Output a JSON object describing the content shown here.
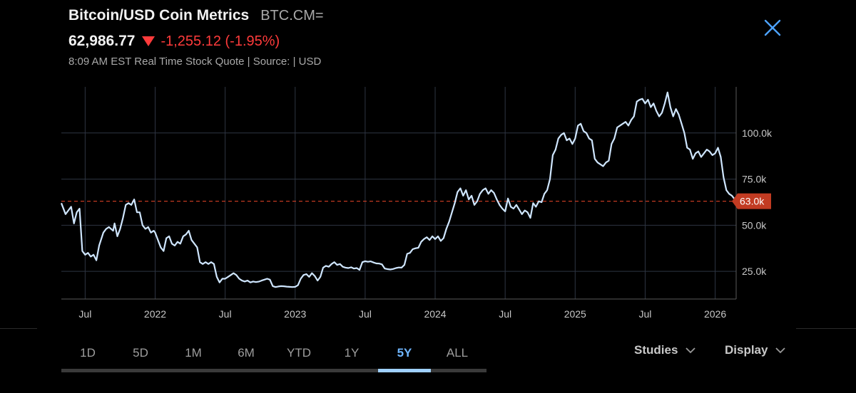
{
  "header": {
    "title": "Bitcoin/USD Coin Metrics",
    "ticker": "BTC.CM=",
    "price": "62,986.77",
    "change": "-1,255.12 (-1.95%)",
    "meta": "8:09 AM EST Real Time Stock Quote | Source:  | USD"
  },
  "colors": {
    "line": "#cfe6ff",
    "down": "#ff3b3b",
    "accent": "#6fb6ff",
    "badge": "#c23b22"
  },
  "ranges": {
    "items": [
      "1D",
      "5D",
      "1M",
      "6M",
      "YTD",
      "1Y",
      "5Y",
      "ALL"
    ],
    "active": "5Y"
  },
  "menus": {
    "studies": "Studies",
    "display": "Display"
  },
  "chart_data": {
    "type": "line",
    "title": "Bitcoin/USD Coin Metrics",
    "xlabel": "",
    "ylabel": "USD",
    "x_range": [
      2021.33,
      2026.15
    ],
    "ylim": [
      10000,
      125000
    ],
    "y_ticks": [
      25000,
      50000,
      75000,
      100000
    ],
    "y_tick_labels": [
      "25.0k",
      "50.0k",
      "75.0k",
      "100.0k"
    ],
    "x_ticks": [
      {
        "t": 2021.5,
        "label": "Jul"
      },
      {
        "t": 2022.0,
        "label": "2022"
      },
      {
        "t": 2022.5,
        "label": "Jul"
      },
      {
        "t": 2023.0,
        "label": "2023"
      },
      {
        "t": 2023.5,
        "label": "Jul"
      },
      {
        "t": 2024.0,
        "label": "2024"
      },
      {
        "t": 2024.5,
        "label": "Jul"
      },
      {
        "t": 2025.0,
        "label": "2025"
      },
      {
        "t": 2025.5,
        "label": "Jul"
      },
      {
        "t": 2026.0,
        "label": "2026"
      }
    ],
    "last_value": 63000,
    "last_label": "63.0k",
    "reference_line": 63000,
    "series": [
      {
        "name": "BTC.CM=",
        "points": [
          [
            2021.33,
            62000
          ],
          [
            2021.36,
            56000
          ],
          [
            2021.38,
            58000
          ],
          [
            2021.4,
            60000
          ],
          [
            2021.42,
            51000
          ],
          [
            2021.44,
            57000
          ],
          [
            2021.46,
            59000
          ],
          [
            2021.48,
            36000
          ],
          [
            2021.5,
            34000
          ],
          [
            2021.52,
            35000
          ],
          [
            2021.54,
            33000
          ],
          [
            2021.56,
            34000
          ],
          [
            2021.58,
            31000
          ],
          [
            2021.6,
            39000
          ],
          [
            2021.63,
            46000
          ],
          [
            2021.65,
            48000
          ],
          [
            2021.67,
            49000
          ],
          [
            2021.7,
            47000
          ],
          [
            2021.71,
            51000
          ],
          [
            2021.73,
            44000
          ],
          [
            2021.75,
            48000
          ],
          [
            2021.77,
            54000
          ],
          [
            2021.79,
            61000
          ],
          [
            2021.81,
            62000
          ],
          [
            2021.83,
            61000
          ],
          [
            2021.85,
            64000
          ],
          [
            2021.87,
            57000
          ],
          [
            2021.89,
            57000
          ],
          [
            2021.91,
            50000
          ],
          [
            2021.93,
            48000
          ],
          [
            2021.95,
            49000
          ],
          [
            2021.97,
            46000
          ],
          [
            2021.99,
            47000
          ],
          [
            2022.0,
            46000
          ],
          [
            2022.02,
            42000
          ],
          [
            2022.04,
            38000
          ],
          [
            2022.06,
            36000
          ],
          [
            2022.08,
            43000
          ],
          [
            2022.1,
            44000
          ],
          [
            2022.12,
            40000
          ],
          [
            2022.14,
            39000
          ],
          [
            2022.16,
            41000
          ],
          [
            2022.18,
            40000
          ],
          [
            2022.2,
            44000
          ],
          [
            2022.22,
            45000
          ],
          [
            2022.24,
            47000
          ],
          [
            2022.26,
            42000
          ],
          [
            2022.28,
            40000
          ],
          [
            2022.3,
            38000
          ],
          [
            2022.32,
            30000
          ],
          [
            2022.34,
            29000
          ],
          [
            2022.36,
            30000
          ],
          [
            2022.38,
            29000
          ],
          [
            2022.4,
            30000
          ],
          [
            2022.42,
            29000
          ],
          [
            2022.44,
            22000
          ],
          [
            2022.46,
            19000
          ],
          [
            2022.48,
            21000
          ],
          [
            2022.5,
            21000
          ],
          [
            2022.52,
            22000
          ],
          [
            2022.54,
            23000
          ],
          [
            2022.56,
            24000
          ],
          [
            2022.58,
            23000
          ],
          [
            2022.6,
            21000
          ],
          [
            2022.62,
            20000
          ],
          [
            2022.64,
            19500
          ],
          [
            2022.66,
            20000
          ],
          [
            2022.68,
            19000
          ],
          [
            2022.7,
            19500
          ],
          [
            2022.72,
            19200
          ],
          [
            2022.74,
            19400
          ],
          [
            2022.76,
            20000
          ],
          [
            2022.78,
            20500
          ],
          [
            2022.8,
            21000
          ],
          [
            2022.82,
            20500
          ],
          [
            2022.84,
            17000
          ],
          [
            2022.86,
            16500
          ],
          [
            2022.88,
            16800
          ],
          [
            2022.9,
            17000
          ],
          [
            2022.92,
            16900
          ],
          [
            2022.94,
            16700
          ],
          [
            2022.96,
            16600
          ],
          [
            2022.98,
            16500
          ],
          [
            2023.0,
            16600
          ],
          [
            2023.02,
            17500
          ],
          [
            2023.04,
            21000
          ],
          [
            2023.06,
            23000
          ],
          [
            2023.08,
            23500
          ],
          [
            2023.1,
            22000
          ],
          [
            2023.12,
            24000
          ],
          [
            2023.14,
            22500
          ],
          [
            2023.16,
            20000
          ],
          [
            2023.18,
            22000
          ],
          [
            2023.2,
            27000
          ],
          [
            2023.22,
            28000
          ],
          [
            2023.24,
            27500
          ],
          [
            2023.26,
            29000
          ],
          [
            2023.28,
            30000
          ],
          [
            2023.3,
            28500
          ],
          [
            2023.32,
            29000
          ],
          [
            2023.34,
            27500
          ],
          [
            2023.36,
            27000
          ],
          [
            2023.38,
            26800
          ],
          [
            2023.4,
            27200
          ],
          [
            2023.42,
            26500
          ],
          [
            2023.44,
            26800
          ],
          [
            2023.46,
            25800
          ],
          [
            2023.48,
            30000
          ],
          [
            2023.5,
            30500
          ],
          [
            2023.52,
            30200
          ],
          [
            2023.54,
            30400
          ],
          [
            2023.56,
            29800
          ],
          [
            2023.58,
            29300
          ],
          [
            2023.6,
            29200
          ],
          [
            2023.62,
            28800
          ],
          [
            2023.64,
            26500
          ],
          [
            2023.66,
            26200
          ],
          [
            2023.68,
            26000
          ],
          [
            2023.7,
            26300
          ],
          [
            2023.72,
            26800
          ],
          [
            2023.74,
            27100
          ],
          [
            2023.76,
            27000
          ],
          [
            2023.78,
            28500
          ],
          [
            2023.8,
            34500
          ],
          [
            2023.82,
            35000
          ],
          [
            2023.84,
            37000
          ],
          [
            2023.86,
            37500
          ],
          [
            2023.88,
            37800
          ],
          [
            2023.9,
            41000
          ],
          [
            2023.92,
            42500
          ],
          [
            2023.94,
            43500
          ],
          [
            2023.96,
            42000
          ],
          [
            2023.98,
            44000
          ],
          [
            2024.0,
            42500
          ],
          [
            2024.02,
            44000
          ],
          [
            2024.04,
            41500
          ],
          [
            2024.06,
            43000
          ],
          [
            2024.08,
            48000
          ],
          [
            2024.1,
            52000
          ],
          [
            2024.12,
            57000
          ],
          [
            2024.14,
            62000
          ],
          [
            2024.16,
            68000
          ],
          [
            2024.18,
            70000
          ],
          [
            2024.2,
            66000
          ],
          [
            2024.22,
            69000
          ],
          [
            2024.24,
            64000
          ],
          [
            2024.26,
            66000
          ],
          [
            2024.28,
            61000
          ],
          [
            2024.3,
            63000
          ],
          [
            2024.32,
            67000
          ],
          [
            2024.34,
            69000
          ],
          [
            2024.36,
            70000
          ],
          [
            2024.38,
            67000
          ],
          [
            2024.4,
            69000
          ],
          [
            2024.42,
            67500
          ],
          [
            2024.44,
            64000
          ],
          [
            2024.46,
            61000
          ],
          [
            2024.48,
            59000
          ],
          [
            2024.5,
            57500
          ],
          [
            2024.52,
            64500
          ],
          [
            2024.54,
            60000
          ],
          [
            2024.56,
            59000
          ],
          [
            2024.58,
            61000
          ],
          [
            2024.6,
            58500
          ],
          [
            2024.62,
            56000
          ],
          [
            2024.64,
            58000
          ],
          [
            2024.66,
            57000
          ],
          [
            2024.68,
            54000
          ],
          [
            2024.7,
            62000
          ],
          [
            2024.72,
            60000
          ],
          [
            2024.74,
            63000
          ],
          [
            2024.76,
            62500
          ],
          [
            2024.78,
            67000
          ],
          [
            2024.8,
            69000
          ],
          [
            2024.82,
            75000
          ],
          [
            2024.84,
            88000
          ],
          [
            2024.86,
            91000
          ],
          [
            2024.88,
            97000
          ],
          [
            2024.9,
            99000
          ],
          [
            2024.92,
            100000
          ],
          [
            2024.94,
            96000
          ],
          [
            2024.96,
            97000
          ],
          [
            2024.98,
            94000
          ],
          [
            2025.0,
            97000
          ],
          [
            2025.02,
            104000
          ],
          [
            2025.04,
            105000
          ],
          [
            2025.06,
            101000
          ],
          [
            2025.08,
            100000
          ],
          [
            2025.1,
            97000
          ],
          [
            2025.12,
            96000
          ],
          [
            2025.14,
            86000
          ],
          [
            2025.16,
            84000
          ],
          [
            2025.18,
            83000
          ],
          [
            2025.2,
            82000
          ],
          [
            2025.22,
            84000
          ],
          [
            2025.24,
            85000
          ],
          [
            2025.26,
            94000
          ],
          [
            2025.28,
            97000
          ],
          [
            2025.3,
            103000
          ],
          [
            2025.32,
            104000
          ],
          [
            2025.34,
            105000
          ],
          [
            2025.36,
            106000
          ],
          [
            2025.38,
            104000
          ],
          [
            2025.4,
            107000
          ],
          [
            2025.42,
            109000
          ],
          [
            2025.44,
            117000
          ],
          [
            2025.46,
            118000
          ],
          [
            2025.48,
            118500
          ],
          [
            2025.5,
            116000
          ],
          [
            2025.52,
            118000
          ],
          [
            2025.54,
            114000
          ],
          [
            2025.56,
            116000
          ],
          [
            2025.58,
            112000
          ],
          [
            2025.6,
            109000
          ],
          [
            2025.62,
            111000
          ],
          [
            2025.64,
            116000
          ],
          [
            2025.66,
            122000
          ],
          [
            2025.68,
            114000
          ],
          [
            2025.7,
            109000
          ],
          [
            2025.72,
            113000
          ],
          [
            2025.74,
            110000
          ],
          [
            2025.76,
            105000
          ],
          [
            2025.78,
            100000
          ],
          [
            2025.8,
            92000
          ],
          [
            2025.82,
            91000
          ],
          [
            2025.84,
            86000
          ],
          [
            2025.86,
            89000
          ],
          [
            2025.88,
            90000
          ],
          [
            2025.9,
            87000
          ],
          [
            2025.92,
            89000
          ],
          [
            2025.94,
            91000
          ],
          [
            2025.96,
            90000
          ],
          [
            2025.98,
            88000
          ],
          [
            2026.0,
            89000
          ],
          [
            2026.02,
            92000
          ],
          [
            2026.04,
            87000
          ],
          [
            2026.06,
            76000
          ],
          [
            2026.08,
            69000
          ],
          [
            2026.1,
            67000
          ],
          [
            2026.12,
            66000
          ],
          [
            2026.15,
            63000
          ]
        ]
      }
    ]
  }
}
